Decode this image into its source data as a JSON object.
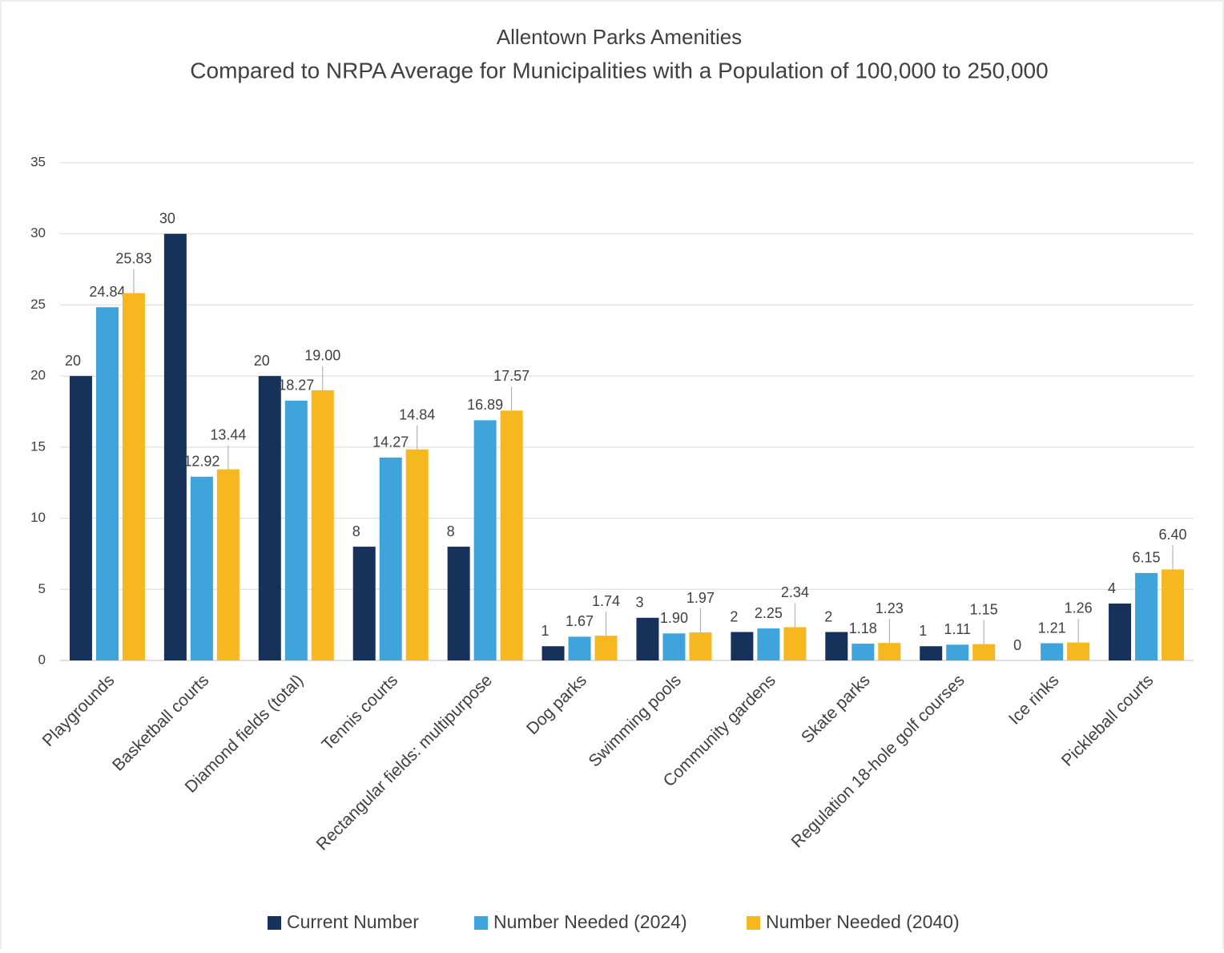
{
  "chart_data": {
    "type": "bar",
    "title": "Allentown Parks Amenities",
    "subtitle": "Compared to NRPA Average for Municipalities with a Population of 100,000 to 250,000",
    "categories": [
      "Playgrounds",
      "Basketball courts",
      "Diamond fields (total)",
      "Tennis courts",
      "Rectangular fields: multipurpose",
      "Dog parks",
      "Swimming pools",
      "Community gardens",
      "Skate parks",
      "Regulation 18-hole golf courses",
      "Ice rinks",
      "Pickleball courts"
    ],
    "series": [
      {
        "name": "Current Number",
        "color": "#17325a",
        "values": [
          20,
          30,
          20,
          8,
          8,
          1,
          3,
          2,
          2,
          1,
          0,
          4
        ]
      },
      {
        "name": "Number Needed (2024)",
        "color": "#3fa4dc",
        "values": [
          24.84,
          12.92,
          18.27,
          14.27,
          16.89,
          1.67,
          1.9,
          2.25,
          1.18,
          1.11,
          1.21,
          6.15
        ],
        "value_labels": [
          "24.84",
          "12.92",
          "18.27",
          "14.27",
          "16.89",
          "1.67",
          "1.90",
          "2.25",
          "1.18",
          "1.11",
          "1.21",
          "6.15"
        ]
      },
      {
        "name": "Number Needed (2040)",
        "color": "#f7b81f",
        "values": [
          25.83,
          13.44,
          19,
          14.84,
          17.57,
          1.74,
          1.97,
          2.34,
          1.23,
          1.15,
          1.26,
          6.4
        ],
        "value_labels": [
          "25.83",
          "13.44",
          "19.00",
          "14.84",
          "17.57",
          "1.74",
          "1.97",
          "2.34",
          "1.23",
          "1.15",
          "1.26",
          "6.40"
        ]
      }
    ],
    "ylim": [
      0,
      35
    ],
    "yticks": [
      0,
      5,
      10,
      15,
      20,
      25,
      30,
      35
    ],
    "grid": true,
    "legend": "bottom"
  }
}
